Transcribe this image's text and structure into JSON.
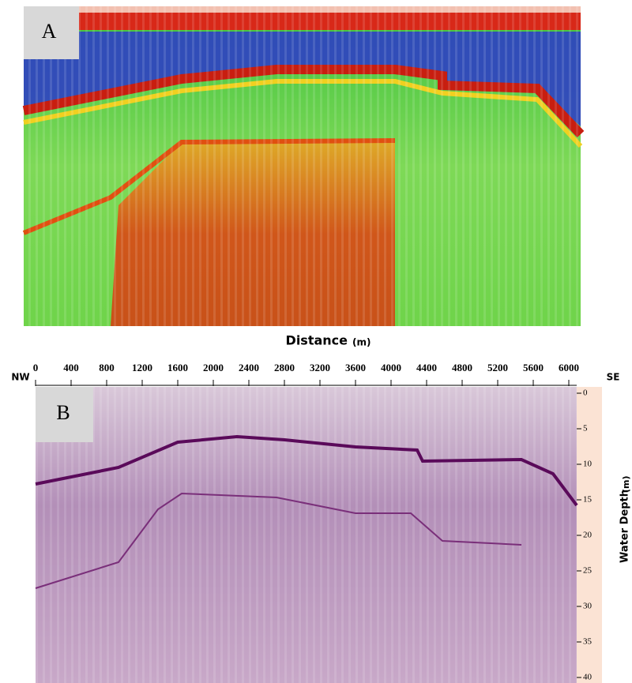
{
  "panel_a": {
    "label": "A",
    "x_axis_label": "Distance",
    "x_axis_unit": "(m)"
  },
  "panel_b": {
    "label": "B",
    "left_end": "NW",
    "right_end": "SE",
    "distance_ticks": [
      0,
      400,
      800,
      1200,
      1600,
      2000,
      2400,
      2800,
      3200,
      3600,
      4000,
      4400,
      4800,
      5200,
      5600,
      6000
    ],
    "depth_ticks": [
      0,
      5,
      10,
      15,
      20,
      25,
      30,
      35,
      40
    ],
    "depth_axis_label": "Water Depth",
    "depth_axis_unit": "(m)"
  }
}
